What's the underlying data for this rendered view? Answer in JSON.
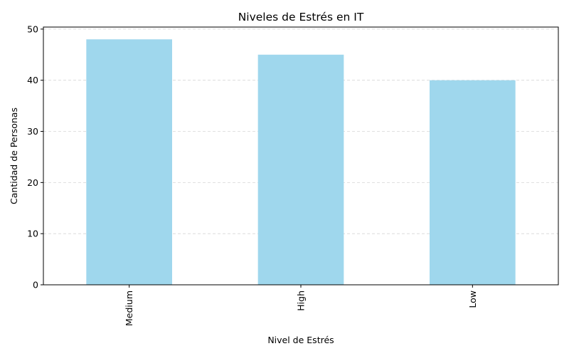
{
  "chart_data": {
    "type": "bar",
    "title": "Niveles de Estrés en IT",
    "xlabel": "Nivel de Estrés",
    "ylabel": "Cantidad de Personas",
    "categories": [
      "Medium",
      "High",
      "Low"
    ],
    "values": [
      48,
      45,
      40
    ],
    "ylim": [
      0,
      50.4
    ],
    "yticks": [
      0,
      10,
      20,
      30,
      40,
      50
    ],
    "grid": "y-dashed",
    "bar_color": "#9fd7ed"
  }
}
